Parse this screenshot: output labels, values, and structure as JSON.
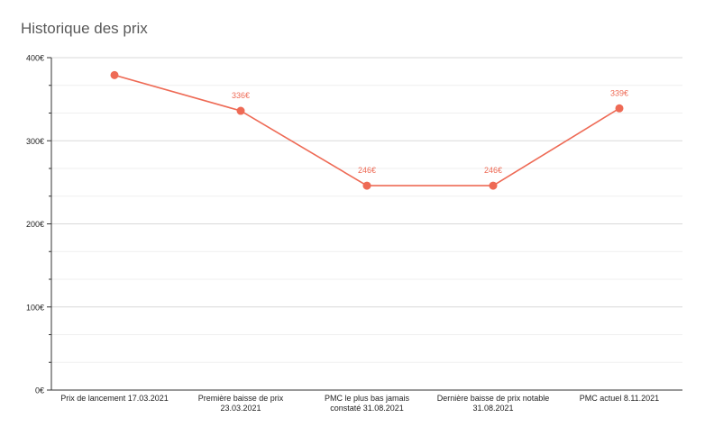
{
  "chart_data": {
    "type": "line",
    "title": "Historique des prix",
    "categories": [
      "Prix de lancement 17.03.2021",
      "Première baisse de prix 23.03.2021",
      "PMC le plus bas jamais constaté 31.08.2021",
      "Dernière baisse de prix notable 31.08.2021",
      "PMC actuel 8.11.2021"
    ],
    "category_lines": [
      [
        "Prix de lancement 17.03.2021"
      ],
      [
        "Première baisse de prix",
        "23.03.2021"
      ],
      [
        "PMC le plus bas jamais",
        "constaté 31.08.2021"
      ],
      [
        "Dernière baisse de prix notable",
        "31.08.2021"
      ],
      [
        "PMC actuel 8.11.2021"
      ]
    ],
    "series": [
      {
        "values": [
          379,
          336,
          246,
          246,
          339
        ]
      }
    ],
    "data_labels": [
      "",
      "336€",
      "246€",
      "246€",
      "339€"
    ],
    "y_ticks": [
      "0€",
      "100€",
      "200€",
      "300€",
      "400€"
    ],
    "ylim": [
      0,
      400
    ],
    "grid": true,
    "legend": "none",
    "colors": {
      "series": "#ee6a55",
      "grid": "#d9d9d9",
      "axis": "#333333",
      "title": "#595959"
    }
  }
}
